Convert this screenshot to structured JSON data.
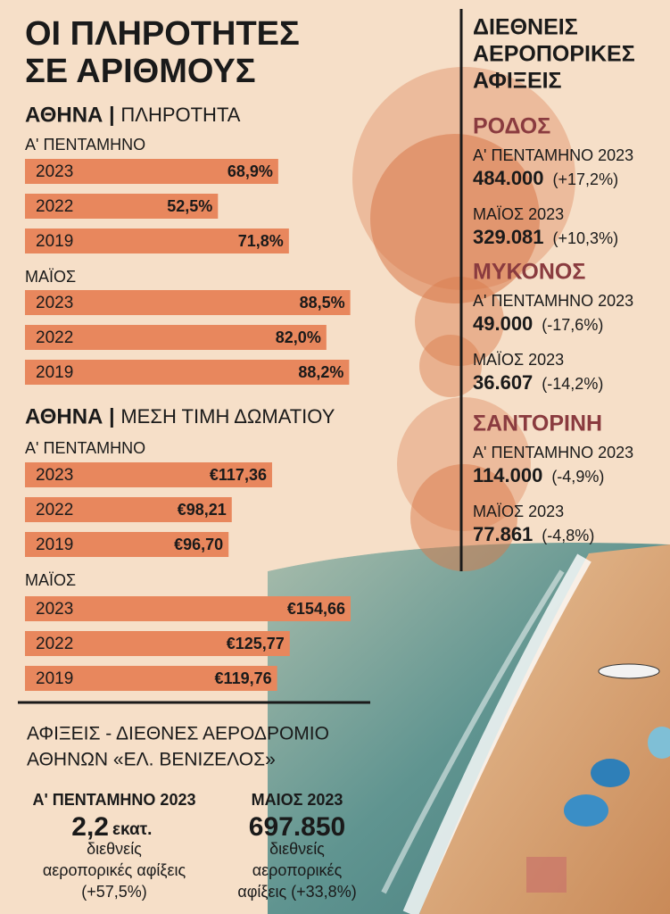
{
  "title": [
    "ΟΙ ΠΛΗΡΟΤΗΤΕΣ",
    "ΣΕ ΑΡΙΘΜΟΥΣ"
  ],
  "sections": [
    {
      "title": "ΑΘΗΝΑ",
      "subtitle": "ΠΛΗΡΟΤΗΤΑ"
    },
    {
      "title": "ΑΘΗΝΑ",
      "subtitle": "ΜΕΣΗ ΤΙΜΗ ΔΩΜΑΤΙΟΥ"
    }
  ],
  "chart_data": [
    {
      "type": "bar",
      "title": "Α' ΠΕΝΤΑΜΗΝΟ",
      "categories": [
        "2023",
        "2022",
        "2019"
      ],
      "values": [
        68.9,
        52.5,
        71.8
      ],
      "value_labels": [
        "68,9%",
        "52,5%",
        "71,8%"
      ],
      "color": "#e8875d"
    },
    {
      "type": "bar",
      "title": "ΜΑΪΟΣ",
      "categories": [
        "2023",
        "2022",
        "2019"
      ],
      "values": [
        88.5,
        82.0,
        88.2
      ],
      "value_labels": [
        "88,5%",
        "82,0%",
        "88,2%"
      ],
      "color": "#e8875d"
    },
    {
      "type": "bar",
      "title": "Α' ΠΕΝΤΑΜΗΝΟ",
      "categories": [
        "2023",
        "2022",
        "2019"
      ],
      "values": [
        117.36,
        98.21,
        96.7
      ],
      "value_labels": [
        "€117,36",
        "€98,21",
        "€96,70"
      ],
      "color": "#e8875d"
    },
    {
      "type": "bar",
      "title": "ΜΑΪΟΣ",
      "categories": [
        "2023",
        "2022",
        "2019"
      ],
      "values": [
        154.66,
        125.77,
        119.76
      ],
      "value_labels": [
        "€154,66",
        "€125,77",
        "€119,76"
      ],
      "color": "#e8875d"
    }
  ],
  "arrivals": {
    "title": [
      "ΔΙΕΘΝΕΙΣ",
      "ΑΕΡΟΠΟΡΙΚΕΣ",
      "ΑΦΙΞΕΙΣ"
    ],
    "islands": [
      {
        "name": "ΡΟΔΟΣ",
        "stats": [
          {
            "label": "Α' ΠΕΝΤΑΜΗΝΟ 2023",
            "value": "484.000",
            "change": "(+17,2%)"
          },
          {
            "label": "ΜΑΪΟΣ 2023",
            "value": "329.081",
            "change": "(+10,3%)"
          }
        ]
      },
      {
        "name": "ΜΥΚΟΝΟΣ",
        "stats": [
          {
            "label": "Α' ΠΕΝΤΑΜΗΝΟ 2023",
            "value": "49.000",
            "change": "(-17,6%)"
          },
          {
            "label": "ΜΑΪΟΣ 2023",
            "value": "36.607",
            "change": "(-14,2%)"
          }
        ]
      },
      {
        "name": "ΣΑΝΤΟΡΙΝΗ",
        "stats": [
          {
            "label": "Α' ΠΕΝΤΑΜΗΝΟ 2023",
            "value": "114.000",
            "change": "(-4,9%)"
          },
          {
            "label": "ΜΑΪΟΣ 2023",
            "value": "77.861",
            "change": "(-4,8%)"
          }
        ]
      }
    ]
  },
  "airport": {
    "title": [
      "ΑΦΙΞΕΙΣ - ΔΙΕΘΝΕΣ ΑΕΡΟΔΡΟΜΙΟ",
      "ΑΘΗΝΩΝ «ΕΛ. ΒΕΝΙΖΕΛΟΣ»"
    ],
    "columns": [
      {
        "label": "Α' ΠΕΝΤΑΜΗΝΟ 2023",
        "value": "2,2",
        "unit": "εκατ.",
        "description": [
          "διεθνείς",
          "αεροπορικές αφίξεις",
          "(+57,5%)"
        ]
      },
      {
        "label": "ΜΑΙΟΣ 2023",
        "value": "697.850",
        "description": [
          "διεθνείς",
          "αεροπορικές",
          "αφίξεις (+33,8%)"
        ]
      }
    ]
  }
}
